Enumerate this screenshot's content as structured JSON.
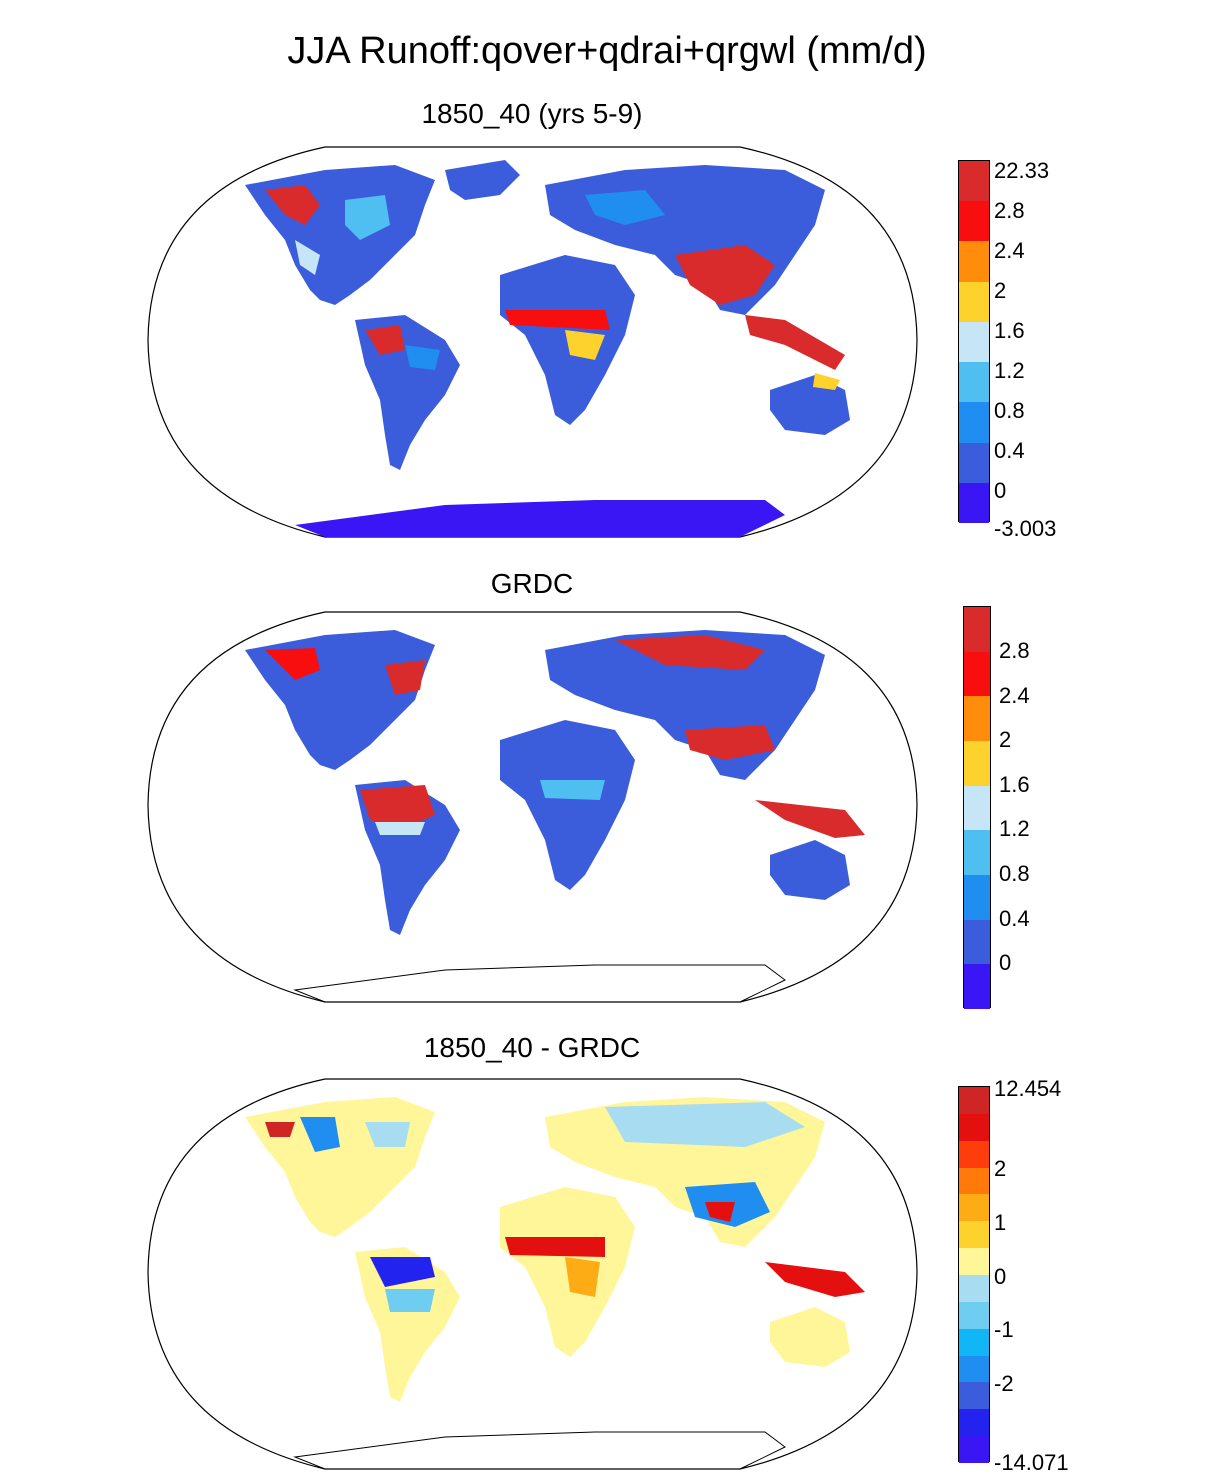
{
  "title": "JJA Runoff:qover+qdrai+qrgwl (mm/d)",
  "panels": [
    {
      "title": "1850_40 (yrs 5-9)",
      "colorbar": {
        "colors": [
          "#3a16f5",
          "#3b5ddb",
          "#1f8ef0",
          "#4fbef0",
          "#c6e6f8",
          "#fdd22c",
          "#ff8c0a",
          "#f80e0e",
          "#d92b2b"
        ],
        "labels": [
          "22.33",
          "2.8",
          "2.4",
          "2",
          "1.6",
          "1.2",
          "0.8",
          "0.4",
          "0",
          "-3.003"
        ]
      }
    },
    {
      "title": "GRDC",
      "colorbar": {
        "colors": [
          "#3a16f5",
          "#3b5ddb",
          "#1f8ef0",
          "#4fbef0",
          "#c6e6f8",
          "#fdd22c",
          "#ff8c0a",
          "#f80e0e",
          "#d92b2b"
        ],
        "labels": [
          "2.8",
          "2.4",
          "2",
          "1.6",
          "1.2",
          "0.8",
          "0.4",
          "0"
        ]
      }
    },
    {
      "title": "1850_40 - GRDC",
      "colorbar": {
        "colors": [
          "#3a16f5",
          "#2323f0",
          "#3b5ddb",
          "#1f8ef0",
          "#10b6f5",
          "#6ecdf0",
          "#a8dcf0",
          "#fff69a",
          "#fdd22c",
          "#fdac16",
          "#ff7a0a",
          "#ff3d0c",
          "#e40f0f",
          "#d02525"
        ],
        "labels": [
          "12.454",
          "2",
          "1",
          "0",
          "-1",
          "-2",
          "-14.071"
        ]
      }
    }
  ]
}
